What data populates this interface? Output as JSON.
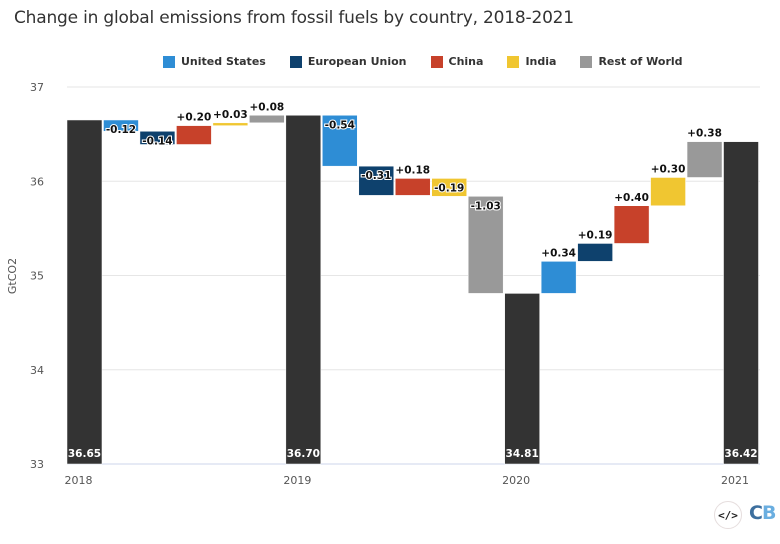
{
  "chart_data": {
    "type": "bar",
    "subtype": "waterfall",
    "title": "Change in global emissions from fossil fuels by country, 2018-2021",
    "xlabel": "",
    "ylabel": "GtCO2",
    "ylim": [
      33,
      37
    ],
    "yticks": [
      33,
      34,
      35,
      36,
      37
    ],
    "grid": true,
    "legend_position": "top-center",
    "legend": [
      {
        "name": "United States",
        "color": "#2e8dd5"
      },
      {
        "name": "European Union",
        "color": "#0e416d"
      },
      {
        "name": "China",
        "color": "#c7412a"
      },
      {
        "name": "India",
        "color": "#f0c631"
      },
      {
        "name": "Rest of World",
        "color": "#999999"
      }
    ],
    "total_color": "#333333",
    "x_tick_labels": [
      "2018",
      "2019",
      "2020",
      "2021"
    ],
    "bars": [
      {
        "kind": "total",
        "label": "2018",
        "value": 36.65,
        "text": "36.65"
      },
      {
        "kind": "delta",
        "series": "United States",
        "value": -0.12,
        "text": "-0.12"
      },
      {
        "kind": "delta",
        "series": "European Union",
        "value": -0.14,
        "text": "-0.14"
      },
      {
        "kind": "delta",
        "series": "China",
        "value": 0.2,
        "text": "+0.20"
      },
      {
        "kind": "delta",
        "series": "India",
        "value": 0.03,
        "text": "+0.03"
      },
      {
        "kind": "delta",
        "series": "Rest of World",
        "value": 0.08,
        "text": "+0.08"
      },
      {
        "kind": "total",
        "label": "2019",
        "value": 36.7,
        "text": "36.70"
      },
      {
        "kind": "delta",
        "series": "United States",
        "value": -0.54,
        "text": "-0.54"
      },
      {
        "kind": "delta",
        "series": "European Union",
        "value": -0.31,
        "text": "-0.31"
      },
      {
        "kind": "delta",
        "series": "China",
        "value": 0.18,
        "text": "+0.18"
      },
      {
        "kind": "delta",
        "series": "India",
        "value": -0.19,
        "text": "-0.19"
      },
      {
        "kind": "delta",
        "series": "Rest of World",
        "value": -1.03,
        "text": "-1.03"
      },
      {
        "kind": "total",
        "label": "2020",
        "value": 34.81,
        "text": "34.81"
      },
      {
        "kind": "delta",
        "series": "United States",
        "value": 0.34,
        "text": "+0.34"
      },
      {
        "kind": "delta",
        "series": "European Union",
        "value": 0.19,
        "text": "+0.19"
      },
      {
        "kind": "delta",
        "series": "China",
        "value": 0.4,
        "text": "+0.40"
      },
      {
        "kind": "delta",
        "series": "India",
        "value": 0.3,
        "text": "+0.30"
      },
      {
        "kind": "delta",
        "series": "Rest of World",
        "value": 0.38,
        "text": "+0.38"
      },
      {
        "kind": "total",
        "label": "2021",
        "value": 36.42,
        "text": "36.42"
      }
    ]
  },
  "footer": {
    "embed_icon": "</>",
    "logo_c": "C",
    "logo_b": "B"
  }
}
